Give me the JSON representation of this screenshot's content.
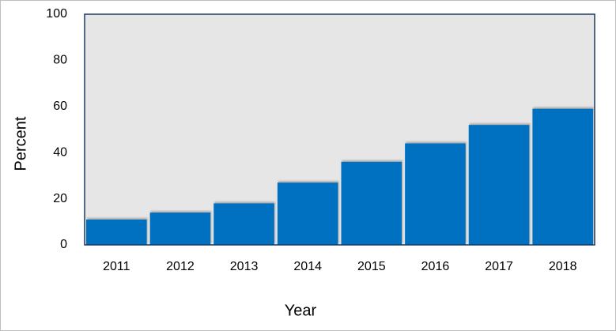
{
  "chart_data": {
    "type": "bar",
    "categories": [
      "2011",
      "2012",
      "2013",
      "2014",
      "2015",
      "2016",
      "2017",
      "2018"
    ],
    "values": [
      11,
      14,
      18,
      27,
      36,
      44,
      52,
      59
    ],
    "color": "#0070c0",
    "xlabel": "Year",
    "ylabel": "Percent",
    "ylim": [
      0,
      100
    ],
    "yticks": [
      0,
      20,
      40,
      60,
      80,
      100
    ],
    "grid": false
  }
}
